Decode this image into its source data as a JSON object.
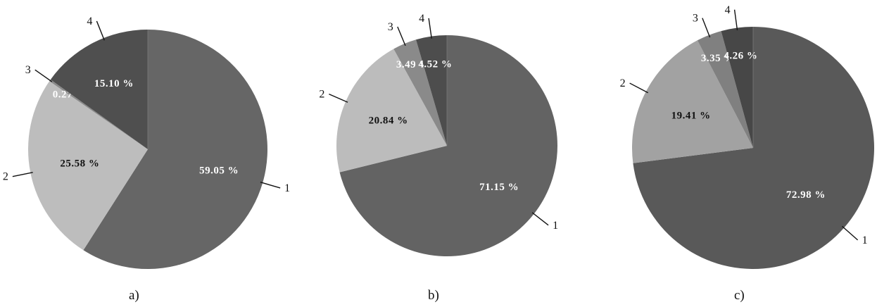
{
  "chart_data": [
    {
      "type": "pie",
      "caption": "a)",
      "slices": [
        {
          "label": "1",
          "value": 59.05,
          "value_label": "59.05 %",
          "color": "#666666",
          "text_color": "#ffffff"
        },
        {
          "label": "2",
          "value": 25.58,
          "value_label": "25.58 %",
          "color": "#bdbdbd",
          "text_color": "#111111"
        },
        {
          "label": "3",
          "value": 0.27,
          "value_label": "0.27 %",
          "color": "#8a8a8a",
          "text_color": "#ffffff"
        },
        {
          "label": "4",
          "value": 15.1,
          "value_label": "15.10 %",
          "color": "#4f4f4f",
          "text_color": "#ffffff"
        }
      ]
    },
    {
      "type": "pie",
      "caption": "b)",
      "slices": [
        {
          "label": "1",
          "value": 71.15,
          "value_label": "71.15 %",
          "color": "#636363",
          "text_color": "#ffffff"
        },
        {
          "label": "2",
          "value": 20.84,
          "value_label": "20.84 %",
          "color": "#bcbcbc",
          "text_color": "#111111"
        },
        {
          "label": "3",
          "value": 3.49,
          "value_label": "3.49 %",
          "color": "#8a8a8a",
          "text_color": "#ffffff"
        },
        {
          "label": "4",
          "value": 4.52,
          "value_label": "4.52 %",
          "color": "#4d4d4d",
          "text_color": "#ffffff"
        }
      ]
    },
    {
      "type": "pie",
      "caption": "c)",
      "slices": [
        {
          "label": "1",
          "value": 72.98,
          "value_label": "72.98 %",
          "color": "#595959",
          "text_color": "#ffffff"
        },
        {
          "label": "2",
          "value": 19.41,
          "value_label": "19.41 %",
          "color": "#a2a2a2",
          "text_color": "#111111"
        },
        {
          "label": "3",
          "value": 3.35,
          "value_label": "3.35 %",
          "color": "#808080",
          "text_color": "#ffffff"
        },
        {
          "label": "4",
          "value": 4.26,
          "value_label": "4.26 %",
          "color": "#474747",
          "text_color": "#ffffff"
        }
      ]
    }
  ]
}
